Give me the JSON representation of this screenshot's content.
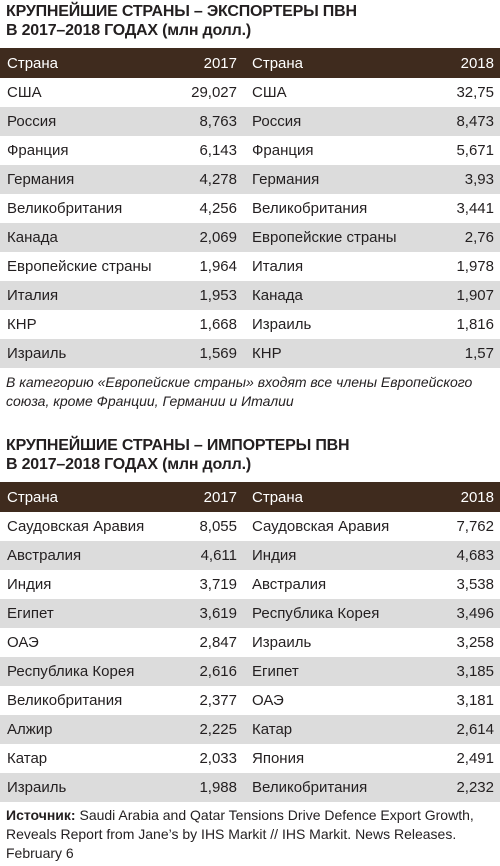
{
  "exporters": {
    "title_line1": "КРУПНЕЙШИЕ СТРАНЫ – ЭКСПОРТЕРЫ ПВН",
    "title_line2_main": "В 2017–2018 ГОДАХ",
    "title_line2_unit": "(млн долл.)",
    "header": {
      "country_a": "Страна",
      "year_a": "2017",
      "country_b": "Страна",
      "year_b": "2018"
    },
    "rows": [
      {
        "country_a": "США",
        "value_a": "29,027",
        "country_b": "США",
        "value_b": "32,75"
      },
      {
        "country_a": "Россия",
        "value_a": "8,763",
        "country_b": "Россия",
        "value_b": "8,473"
      },
      {
        "country_a": "Франция",
        "value_a": "6,143",
        "country_b": "Франция",
        "value_b": "5,671"
      },
      {
        "country_a": "Германия",
        "value_a": "4,278",
        "country_b": "Германия",
        "value_b": "3,93"
      },
      {
        "country_a": "Великобритания",
        "value_a": "4,256",
        "country_b": "Великобритания",
        "value_b": "3,441"
      },
      {
        "country_a": "Канада",
        "value_a": "2,069",
        "country_b": "Европейские страны",
        "value_b": "2,76"
      },
      {
        "country_a": "Европейские страны",
        "value_a": "1,964",
        "country_b": "Италия",
        "value_b": "1,978"
      },
      {
        "country_a": "Италия",
        "value_a": "1,953",
        "country_b": "Канада",
        "value_b": "1,907"
      },
      {
        "country_a": "КНР",
        "value_a": "1,668",
        "country_b": "Израиль",
        "value_b": "1,816"
      },
      {
        "country_a": "Израиль",
        "value_a": "1,569",
        "country_b": "КНР",
        "value_b": "1,57"
      }
    ],
    "note": "В категорию «Европейские страны» входят все члены Европейского союза, кроме Франции, Германии и Италии"
  },
  "importers": {
    "title_line1": "КРУПНЕЙШИЕ СТРАНЫ – ИМПОРТЕРЫ ПВН",
    "title_line2_main": "В 2017–2018 ГОДАХ",
    "title_line2_unit": "(млн долл.)",
    "header": {
      "country_a": "Страна",
      "year_a": "2017",
      "country_b": "Страна",
      "year_b": "2018"
    },
    "rows": [
      {
        "country_a": "Саудовская Аравия",
        "value_a": "8,055",
        "country_b": "Саудовская Аравия",
        "value_b": "7,762"
      },
      {
        "country_a": "Австралия",
        "value_a": "4,611",
        "country_b": "Индия",
        "value_b": "4,683"
      },
      {
        "country_a": "Индия",
        "value_a": "3,719",
        "country_b": "Австралия",
        "value_b": "3,538"
      },
      {
        "country_a": "Египет",
        "value_a": "3,619",
        "country_b": "Республика Корея",
        "value_b": "3,496"
      },
      {
        "country_a": "ОАЭ",
        "value_a": "2,847",
        "country_b": "Израиль",
        "value_b": "3,258"
      },
      {
        "country_a": "Республика Корея",
        "value_a": "2,616",
        "country_b": "Египет",
        "value_b": "3,185"
      },
      {
        "country_a": "Великобритания",
        "value_a": "2,377",
        "country_b": "ОАЭ",
        "value_b": "3,181"
      },
      {
        "country_a": "Алжир",
        "value_a": "2,225",
        "country_b": "Катар",
        "value_b": "2,614"
      },
      {
        "country_a": "Катар",
        "value_a": "2,033",
        "country_b": "Япония",
        "value_b": "2,491"
      },
      {
        "country_a": "Израиль",
        "value_a": "1,988",
        "country_b": "Великобритания",
        "value_b": "2,232"
      }
    ]
  },
  "source": {
    "label": "Источник:",
    "text": " Saudi Arabia and Qatar Tensions Drive Defence Export Growth, Reveals Report from Jane’s by IHS Markit // IHS Markit. News Releases. February 6"
  }
}
